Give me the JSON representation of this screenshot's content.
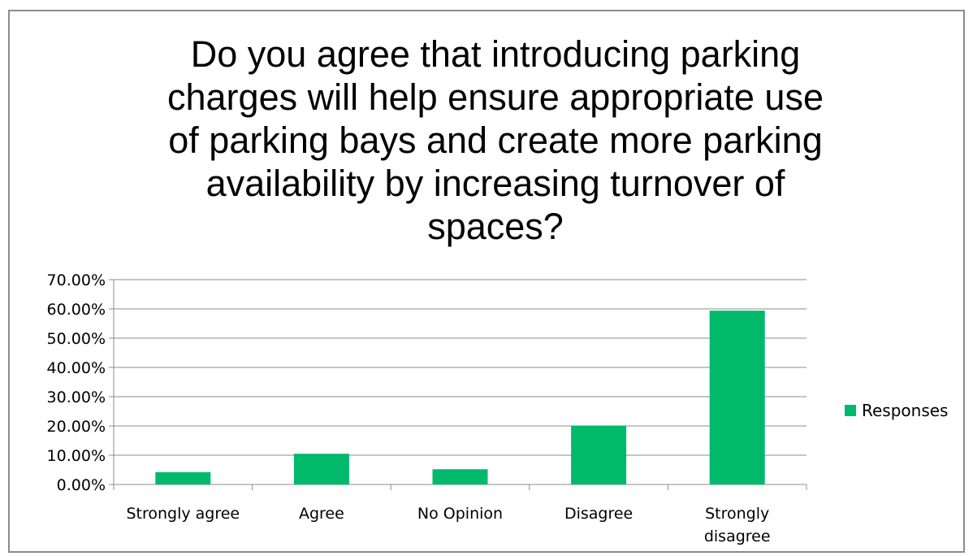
{
  "chart_data": {
    "type": "bar",
    "title": "Do you agree that introducing parking charges will help ensure appropriate use of parking bays and create more parking availability by increasing turnover of spaces?",
    "title_lines": [
      "Do you agree that introducing parking",
      "charges will help ensure appropriate use",
      "of parking bays and create more parking",
      "availability by increasing turnover of",
      "spaces?"
    ],
    "categories": [
      "Strongly agree",
      "Agree",
      "No Opinion",
      "Disagree",
      "Strongly disagree"
    ],
    "category_lines": [
      [
        "Strongly agree"
      ],
      [
        "Agree"
      ],
      [
        "No Opinion"
      ],
      [
        "Disagree"
      ],
      [
        "Strongly",
        "disagree"
      ]
    ],
    "series": [
      {
        "name": "Responses",
        "values": [
          0.042,
          0.105,
          0.052,
          0.201,
          0.594
        ]
      }
    ],
    "ylim": [
      0,
      0.7
    ],
    "yticks": [
      0,
      0.1,
      0.2,
      0.3,
      0.4,
      0.5,
      0.6,
      0.7
    ],
    "ytick_labels": [
      "0.00%",
      "10.00%",
      "20.00%",
      "30.00%",
      "40.00%",
      "50.00%",
      "60.00%",
      "70.00%"
    ],
    "grid": true,
    "legend_position": "right",
    "bar_color": "#00b96b",
    "grid_color": "#8c8c8c"
  }
}
